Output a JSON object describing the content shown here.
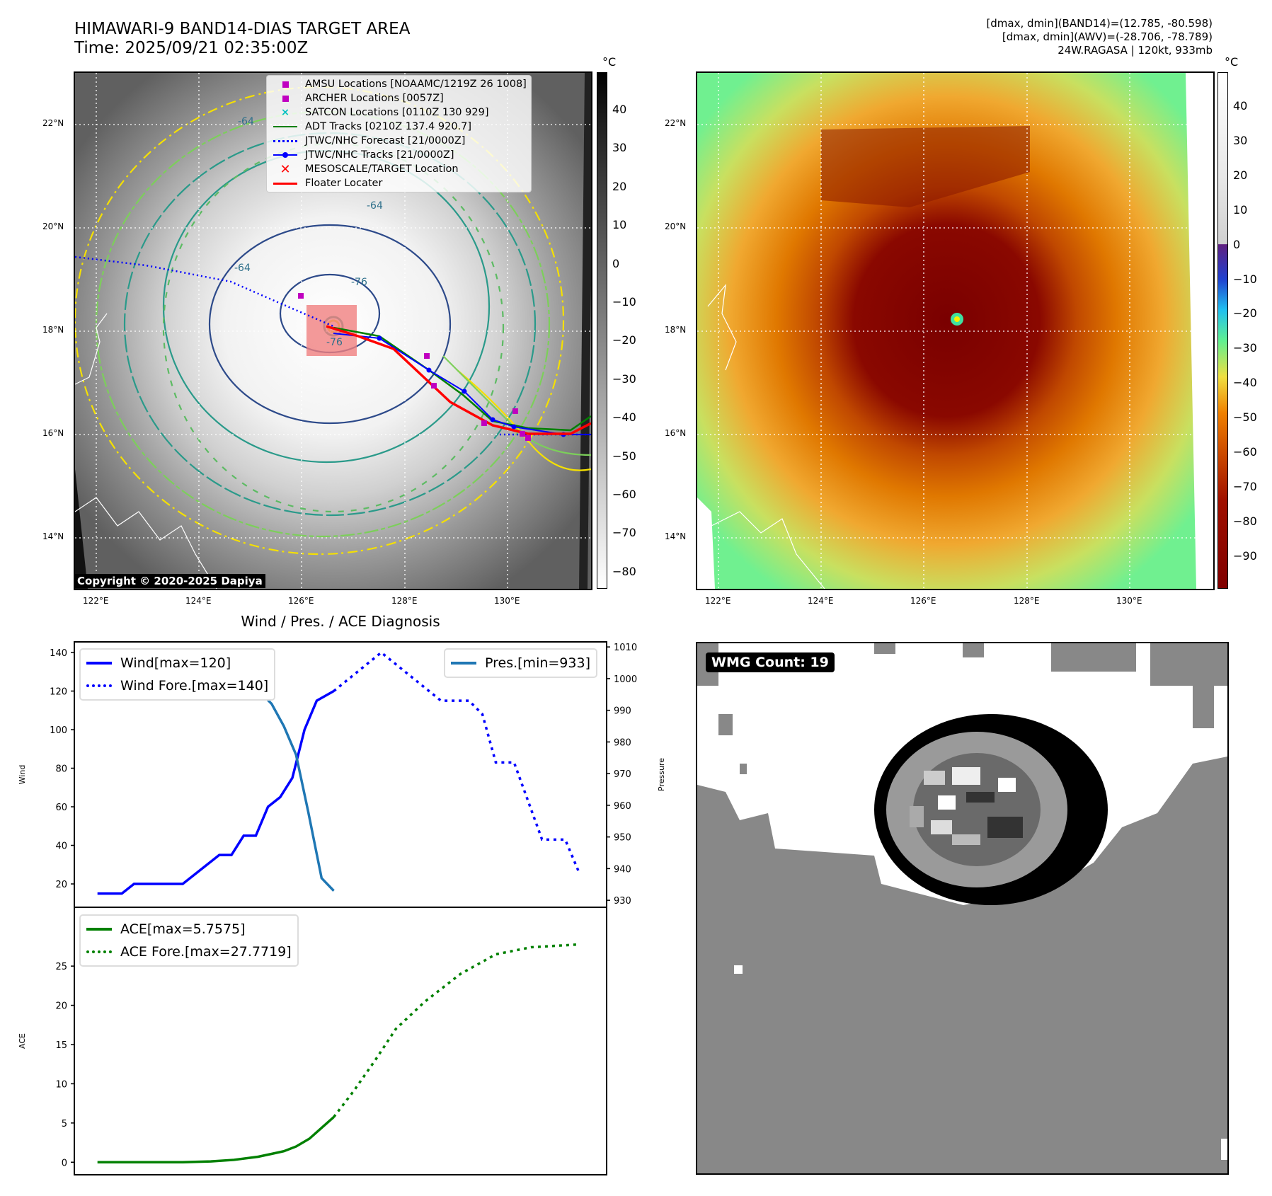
{
  "header": {
    "title_line1": "HIMAWARI-9 BAND14-DIAS TARGET AREA",
    "title_line2": "Time: 2025/09/21 02:35:00Z",
    "info_line1": "[dmax, dmin](BAND14)=(12.785, -80.598)",
    "info_line2": "[dmax, dmin](AWV)=(-28.706, -78.789)",
    "info_line3": "24W.RAGASA | 120kt, 933mb"
  },
  "map": {
    "lat_labels": [
      "22°N",
      "20°N",
      "18°N",
      "16°N",
      "14°N"
    ],
    "lon_labels": [
      "122°E",
      "124°E",
      "126°E",
      "128°E",
      "130°E"
    ],
    "copyright": "Copyright © 2020-2025 Dapiya",
    "contour_labels": [
      "-64",
      "-64",
      "-76",
      "-76",
      "-64"
    ],
    "legend": [
      {
        "label": "AMSU Locations [NOAAMC/1219Z 26 1008]",
        "color": "#c000c0"
      },
      {
        "label": "ARCHER Locations [0057Z]",
        "color": "#c000c0"
      },
      {
        "label": "SATCON Locations [0110Z 130 929]",
        "color": "#00c0c0"
      },
      {
        "label": "ADT Tracks [0210Z 137.4 920.7]",
        "color": "#008000"
      },
      {
        "label": "JTWC/NHC Forecast [21/0000Z]",
        "color": "#0000ff"
      },
      {
        "label": "JTWC/NHC Tracks [21/0000Z]",
        "color": "#0000ff"
      },
      {
        "label": "MESOSCALE/TARGET Location",
        "color": "#ff0000"
      },
      {
        "label": "Floater Locater",
        "color": "#ff0000"
      }
    ]
  },
  "colorbar_band14": {
    "unit": "°C",
    "ticks": [
      "40",
      "30",
      "20",
      "10",
      "0",
      "−10",
      "−20",
      "−30",
      "−40",
      "−50",
      "−60",
      "−70",
      "−80"
    ]
  },
  "colorbar_awv": {
    "unit": "°C",
    "ticks": [
      "40",
      "30",
      "20",
      "10",
      "0",
      "−10",
      "−20",
      "−30",
      "−40",
      "−50",
      "−60",
      "−70",
      "−80",
      "−90"
    ]
  },
  "wmg": {
    "label": "WMG Count: 19"
  },
  "chart_data": [
    {
      "type": "line",
      "title": "Wind / Pres. / ACE Diagnosis",
      "ylabel": "Wind",
      "y2label": "Pressure",
      "xlim": [
        -1.9,
        41.8
      ],
      "ylim": [
        7.9,
        145.5
      ],
      "y2lim": [
        927.8,
        1011.6
      ],
      "yticks": [
        20,
        40,
        60,
        80,
        100,
        120,
        140
      ],
      "y2ticks": [
        930,
        940,
        950,
        960,
        970,
        980,
        990,
        1000,
        1010
      ],
      "series": [
        {
          "name": "Wind[max=120]",
          "axis": "left",
          "style": "solid",
          "color": "#0000ff",
          "x": [
            0,
            2,
            3,
            7,
            8,
            9,
            10,
            11,
            12,
            13,
            14,
            15,
            16,
            17,
            18,
            19.4
          ],
          "y": [
            15,
            15,
            20,
            20,
            25,
            30,
            35,
            35,
            45,
            45,
            60,
            65,
            75,
            100,
            115,
            120
          ]
        },
        {
          "name": "Wind Fore.[max=140]",
          "axis": "left",
          "style": "dotted",
          "color": "#0000ff",
          "x": [
            19.4,
            23.3,
            28.2,
            30.5,
            31.6,
            32.7,
            34.2,
            36.5,
            38.4,
            39.6
          ],
          "y": [
            120,
            140,
            115,
            115,
            108,
            83,
            83,
            43,
            43,
            25
          ]
        },
        {
          "name": "Pres.[min=933]",
          "axis": "right",
          "style": "solid",
          "color": "#1f77b4",
          "x": [
            0,
            1.1,
            4.1,
            5.1,
            7,
            8,
            10.3,
            11.3,
            13.3,
            14.3,
            15.3,
            16.3,
            17.3,
            18.4,
            19.4
          ],
          "y": [
            1009,
            1007,
            1007,
            1008,
            1008,
            1006,
            1004,
            1000,
            996,
            992,
            985,
            976,
            958,
            937,
            933
          ]
        }
      ],
      "legend_left": [
        "Wind[max=120]",
        "Wind Fore.[max=140]"
      ],
      "legend_right": [
        "Pres.[min=933]"
      ]
    },
    {
      "type": "line",
      "ylabel": "ACE",
      "xlim": [
        -1.9,
        41.8
      ],
      "ylim": [
        -1.6,
        32.5
      ],
      "yticks": [
        0,
        5,
        10,
        15,
        20,
        25
      ],
      "series": [
        {
          "name": "ACE[max=5.7575]",
          "style": "solid",
          "color": "#008000",
          "x": [
            0,
            7,
            9.3,
            11.2,
            13.2,
            15.3,
            16.3,
            17.4,
            19.4
          ],
          "y": [
            0,
            0,
            0.1,
            0.3,
            0.7,
            1.4,
            2.0,
            3.0,
            5.76
          ]
        },
        {
          "name": "ACE Fore.[max=27.7719]",
          "style": "dotted",
          "color": "#008000",
          "x": [
            19.4,
            21,
            22.8,
            24.5,
            26.9,
            29.8,
            32.7,
            35.6,
            39.6
          ],
          "y": [
            5.76,
            9,
            13,
            17,
            20.5,
            24,
            26.5,
            27.4,
            27.77
          ]
        }
      ],
      "legend": [
        "ACE[max=5.7575]",
        "ACE Fore.[max=27.7719]"
      ]
    }
  ]
}
